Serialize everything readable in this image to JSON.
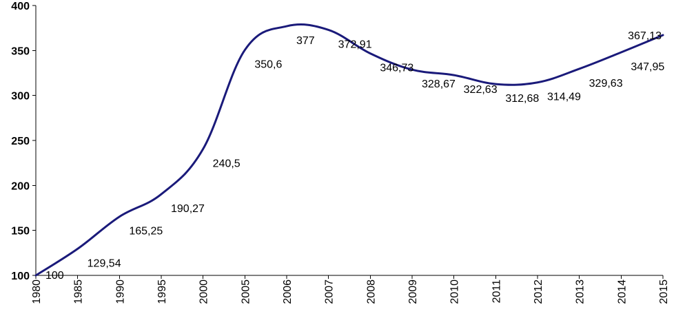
{
  "chart_data": {
    "type": "line",
    "title": "",
    "xlabel": "",
    "ylabel": "",
    "ylim": [
      100,
      400
    ],
    "yticks": [
      "100",
      "150",
      "200",
      "250",
      "300",
      "350",
      "400"
    ],
    "grid": false,
    "legend": "none",
    "line_color": "#1a1a7a",
    "categories": [
      "1980",
      "1985",
      "1990",
      "1995",
      "2000",
      "2005",
      "2006",
      "2007",
      "2008",
      "2009",
      "2010",
      "2011",
      "2012",
      "2013",
      "2014",
      "2015"
    ],
    "series": [
      {
        "values": [
          100,
          129.54,
          165.25,
          190.27,
          240.5,
          350.6,
          377,
          372.91,
          346.73,
          328.67,
          322.63,
          312.68,
          314.49,
          329.63,
          347.95,
          367.13
        ],
        "labels": [
          "100",
          "129,54",
          "165,25",
          "190,27",
          "240,5",
          "350,6",
          "377",
          "372,91",
          "346,73",
          "328,67",
          "322,63",
          "312,68",
          "314,49",
          "329,63",
          "347,95",
          "367,13"
        ]
      }
    ]
  }
}
